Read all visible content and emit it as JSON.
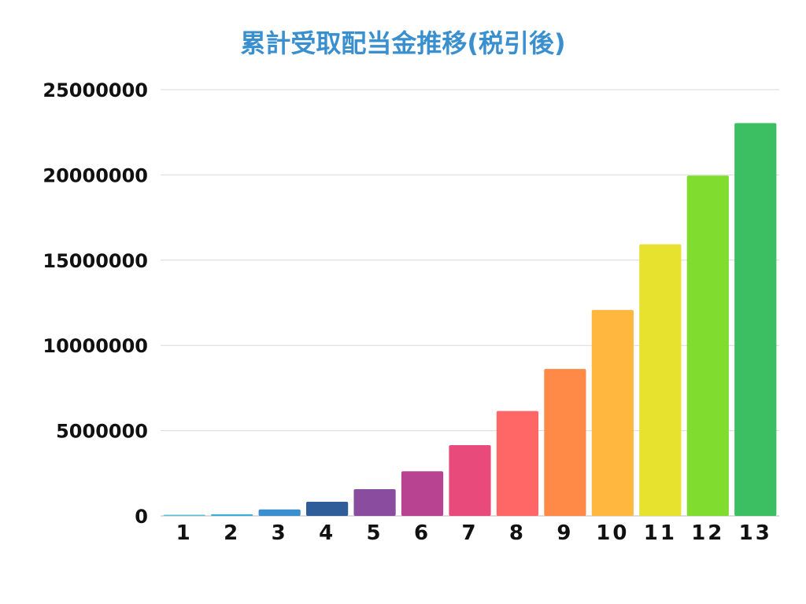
{
  "chart_data": {
    "type": "bar",
    "title": "累計受取配当金推移(税引後)",
    "xlabel": "",
    "ylabel": "",
    "categories": [
      "1",
      "2",
      "3",
      "4",
      "5",
      "6",
      "7",
      "8",
      "9",
      "10",
      "11",
      "12",
      "13"
    ],
    "values": [
      20000,
      100000,
      380000,
      830000,
      1570000,
      2620000,
      4150000,
      6150000,
      8620000,
      12080000,
      15930000,
      19960000,
      23040000
    ],
    "colors": [
      "#5bc0d6",
      "#3aaed4",
      "#3a8fcf",
      "#2e5d9a",
      "#8a4c9e",
      "#b84390",
      "#e84a7c",
      "#ff6666",
      "#ff8a47",
      "#ffb740",
      "#e6e22e",
      "#80dc2f",
      "#3cbe63"
    ],
    "ylim": [
      0,
      25000000
    ],
    "yticks": [
      0,
      5000000,
      10000000,
      15000000,
      20000000,
      25000000
    ],
    "ytick_labels": [
      "0",
      "5000000",
      "10000000",
      "15000000",
      "20000000",
      "25000000"
    ],
    "grid": true,
    "legend": "none"
  }
}
